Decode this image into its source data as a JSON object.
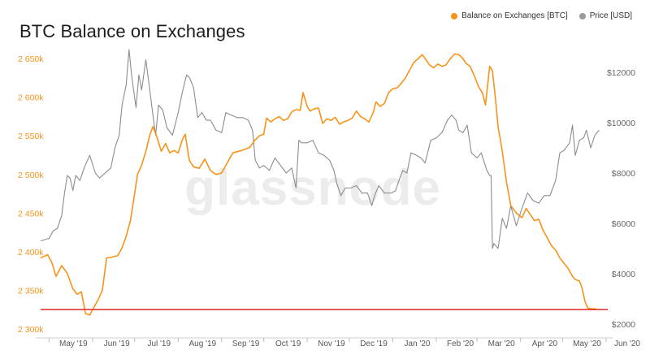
{
  "chart_data": {
    "type": "line",
    "title": "BTC Balance on Exchanges",
    "watermark": "glassnode",
    "legend_position": "top-right",
    "grid": false,
    "x_ticks": [
      "May '19",
      "Jun '19",
      "Jul '19",
      "Aug '19",
      "Sep '19",
      "Oct '19",
      "Nov '19",
      "Dec '19",
      "Jan '20",
      "Feb '20",
      "Mar '20",
      "Apr '20",
      "May '20",
      "Jun '20"
    ],
    "x_range": [
      "2019-04-25",
      "2020-06-01"
    ],
    "y_left": {
      "ticks": [
        2300000,
        2350000,
        2400000,
        2450000,
        2500000,
        2550000,
        2600000,
        2650000
      ],
      "tick_labels": [
        "2 300k",
        "2 350k",
        "2 400k",
        "2 450k",
        "2 500k",
        "2 550k",
        "2 600k",
        "2 650k"
      ],
      "range": [
        2300000,
        2668000
      ],
      "color": "#f7931a"
    },
    "y_right": {
      "ticks": [
        2000,
        4000,
        6000,
        8000,
        10000,
        12000
      ],
      "tick_labels": [
        "$2000",
        "$4000",
        "$6000",
        "$8000",
        "$10000",
        "$12000"
      ],
      "range": [
        1800,
        13100
      ],
      "color": "#9a9a9a"
    },
    "reference_line": {
      "axis": "left",
      "value": 2325000,
      "color": "#e53935"
    },
    "series": [
      {
        "name": "Balance on Exchanges [BTC]",
        "axis": "left",
        "color": "#f7931a",
        "points": [
          [
            "2019-04-25",
            2392000
          ],
          [
            "2019-04-30",
            2396000
          ],
          [
            "2019-05-03",
            2386000
          ],
          [
            "2019-05-06",
            2368000
          ],
          [
            "2019-05-10",
            2382000
          ],
          [
            "2019-05-14",
            2372000
          ],
          [
            "2019-05-18",
            2352000
          ],
          [
            "2019-05-21",
            2345000
          ],
          [
            "2019-05-24",
            2348000
          ],
          [
            "2019-05-27",
            2320000
          ],
          [
            "2019-05-30",
            2318000
          ],
          [
            "2019-06-02",
            2328000
          ],
          [
            "2019-06-05",
            2338000
          ],
          [
            "2019-06-08",
            2350000
          ],
          [
            "2019-06-11",
            2392000
          ],
          [
            "2019-06-15",
            2393000
          ],
          [
            "2019-06-19",
            2395000
          ],
          [
            "2019-06-22",
            2405000
          ],
          [
            "2019-06-25",
            2420000
          ],
          [
            "2019-06-28",
            2440000
          ],
          [
            "2019-07-01",
            2475000
          ],
          [
            "2019-07-03",
            2500000
          ],
          [
            "2019-07-06",
            2512000
          ],
          [
            "2019-07-09",
            2530000
          ],
          [
            "2019-07-12",
            2552000
          ],
          [
            "2019-07-14",
            2562000
          ],
          [
            "2019-07-17",
            2548000
          ],
          [
            "2019-07-20",
            2530000
          ],
          [
            "2019-07-23",
            2540000
          ],
          [
            "2019-07-26",
            2528000
          ],
          [
            "2019-07-29",
            2531000
          ],
          [
            "2019-08-01",
            2528000
          ],
          [
            "2019-08-04",
            2545000
          ],
          [
            "2019-08-06",
            2552000
          ],
          [
            "2019-08-09",
            2518000
          ],
          [
            "2019-08-12",
            2510000
          ],
          [
            "2019-08-16",
            2508000
          ],
          [
            "2019-08-20",
            2520000
          ],
          [
            "2019-08-24",
            2505000
          ],
          [
            "2019-08-28",
            2500000
          ],
          [
            "2019-09-01",
            2502000
          ],
          [
            "2019-09-05",
            2515000
          ],
          [
            "2019-09-09",
            2528000
          ],
          [
            "2019-09-13",
            2530000
          ],
          [
            "2019-09-17",
            2532000
          ],
          [
            "2019-09-21",
            2535000
          ],
          [
            "2019-09-25",
            2545000
          ],
          [
            "2019-09-28",
            2550000
          ],
          [
            "2019-10-01",
            2552000
          ],
          [
            "2019-10-03",
            2573000
          ],
          [
            "2019-10-06",
            2568000
          ],
          [
            "2019-10-09",
            2572000
          ],
          [
            "2019-10-12",
            2575000
          ],
          [
            "2019-10-15",
            2570000
          ],
          [
            "2019-10-18",
            2572000
          ],
          [
            "2019-10-21",
            2581000
          ],
          [
            "2019-10-24",
            2584000
          ],
          [
            "2019-10-27",
            2583000
          ],
          [
            "2019-10-29",
            2606000
          ],
          [
            "2019-11-01",
            2588000
          ],
          [
            "2019-11-03",
            2582000
          ],
          [
            "2019-11-06",
            2585000
          ],
          [
            "2019-11-09",
            2586000
          ],
          [
            "2019-11-12",
            2566000
          ],
          [
            "2019-11-15",
            2572000
          ],
          [
            "2019-11-18",
            2570000
          ],
          [
            "2019-11-21",
            2574000
          ],
          [
            "2019-11-24",
            2565000
          ],
          [
            "2019-11-27",
            2568000
          ],
          [
            "2019-11-30",
            2570000
          ],
          [
            "2019-12-03",
            2573000
          ],
          [
            "2019-12-06",
            2582000
          ],
          [
            "2019-12-09",
            2575000
          ],
          [
            "2019-12-12",
            2572000
          ],
          [
            "2019-12-15",
            2568000
          ],
          [
            "2019-12-18",
            2580000
          ],
          [
            "2019-12-20",
            2594000
          ],
          [
            "2019-12-23",
            2588000
          ],
          [
            "2019-12-26",
            2592000
          ],
          [
            "2019-12-29",
            2606000
          ],
          [
            "2020-01-01",
            2611000
          ],
          [
            "2020-01-04",
            2612000
          ],
          [
            "2020-01-07",
            2618000
          ],
          [
            "2020-01-10",
            2625000
          ],
          [
            "2020-01-13",
            2635000
          ],
          [
            "2020-01-16",
            2645000
          ],
          [
            "2020-01-19",
            2650000
          ],
          [
            "2020-01-22",
            2655000
          ],
          [
            "2020-01-24",
            2650000
          ],
          [
            "2020-01-27",
            2642000
          ],
          [
            "2020-01-30",
            2638000
          ],
          [
            "2020-02-02",
            2643000
          ],
          [
            "2020-02-05",
            2640000
          ],
          [
            "2020-02-08",
            2642000
          ],
          [
            "2020-02-11",
            2650000
          ],
          [
            "2020-02-14",
            2656000
          ],
          [
            "2020-02-17",
            2655000
          ],
          [
            "2020-02-20",
            2650000
          ],
          [
            "2020-02-22",
            2644000
          ],
          [
            "2020-02-25",
            2640000
          ],
          [
            "2020-02-28",
            2628000
          ],
          [
            "2020-03-02",
            2614000
          ],
          [
            "2020-03-05",
            2605000
          ],
          [
            "2020-03-07",
            2590000
          ],
          [
            "2020-03-10",
            2640000
          ],
          [
            "2020-03-12",
            2634000
          ],
          [
            "2020-03-14",
            2600000
          ],
          [
            "2020-03-16",
            2562000
          ],
          [
            "2020-03-19",
            2530000
          ],
          [
            "2020-03-22",
            2490000
          ],
          [
            "2020-03-25",
            2460000
          ],
          [
            "2020-03-29",
            2450000
          ],
          [
            "2020-04-02",
            2444000
          ],
          [
            "2020-04-05",
            2456000
          ],
          [
            "2020-04-08",
            2448000
          ],
          [
            "2020-04-11",
            2440000
          ],
          [
            "2020-04-14",
            2442000
          ],
          [
            "2020-04-17",
            2428000
          ],
          [
            "2020-04-20",
            2418000
          ],
          [
            "2020-04-23",
            2408000
          ],
          [
            "2020-04-26",
            2402000
          ],
          [
            "2020-04-29",
            2392000
          ],
          [
            "2020-05-02",
            2385000
          ],
          [
            "2020-05-05",
            2378000
          ],
          [
            "2020-05-08",
            2368000
          ],
          [
            "2020-05-10",
            2364000
          ],
          [
            "2020-05-13",
            2362000
          ],
          [
            "2020-05-15",
            2352000
          ],
          [
            "2020-05-17",
            2335000
          ],
          [
            "2020-05-19",
            2327000
          ],
          [
            "2020-05-22",
            2326000
          ],
          [
            "2020-05-25",
            2326000
          ]
        ]
      },
      {
        "name": "Price [USD]",
        "axis": "right",
        "color": "#8c8c8c",
        "points": [
          [
            "2019-04-25",
            5300
          ],
          [
            "2019-05-01",
            5400
          ],
          [
            "2019-05-04",
            5700
          ],
          [
            "2019-05-07",
            5800
          ],
          [
            "2019-05-10",
            6300
          ],
          [
            "2019-05-12",
            7200
          ],
          [
            "2019-05-14",
            7900
          ],
          [
            "2019-05-16",
            7800
          ],
          [
            "2019-05-18",
            7300
          ],
          [
            "2019-05-20",
            7900
          ],
          [
            "2019-05-23",
            7700
          ],
          [
            "2019-05-26",
            8200
          ],
          [
            "2019-05-30",
            8700
          ],
          [
            "2019-06-03",
            8000
          ],
          [
            "2019-06-06",
            7800
          ],
          [
            "2019-06-10",
            8000
          ],
          [
            "2019-06-14",
            8200
          ],
          [
            "2019-06-17",
            9000
          ],
          [
            "2019-06-20",
            9500
          ],
          [
            "2019-06-22",
            10700
          ],
          [
            "2019-06-25",
            11500
          ],
          [
            "2019-06-27",
            12900
          ],
          [
            "2019-06-29",
            11800
          ],
          [
            "2019-07-02",
            10600
          ],
          [
            "2019-07-04",
            11900
          ],
          [
            "2019-07-06",
            11300
          ],
          [
            "2019-07-09",
            12500
          ],
          [
            "2019-07-12",
            11200
          ],
          [
            "2019-07-14",
            10300
          ],
          [
            "2019-07-16",
            9500
          ],
          [
            "2019-07-18",
            10700
          ],
          [
            "2019-07-21",
            10500
          ],
          [
            "2019-07-24",
            9800
          ],
          [
            "2019-07-28",
            9500
          ],
          [
            "2019-08-01",
            10400
          ],
          [
            "2019-08-04",
            11200
          ],
          [
            "2019-08-07",
            11900
          ],
          [
            "2019-08-09",
            11800
          ],
          [
            "2019-08-12",
            11400
          ],
          [
            "2019-08-15",
            10200
          ],
          [
            "2019-08-18",
            10400
          ],
          [
            "2019-08-21",
            10100
          ],
          [
            "2019-08-24",
            10100
          ],
          [
            "2019-08-28",
            9700
          ],
          [
            "2019-09-01",
            9600
          ],
          [
            "2019-09-04",
            10400
          ],
          [
            "2019-09-08",
            10300
          ],
          [
            "2019-09-12",
            10200
          ],
          [
            "2019-09-16",
            10200
          ],
          [
            "2019-09-20",
            10100
          ],
          [
            "2019-09-23",
            9700
          ],
          [
            "2019-09-25",
            8500
          ],
          [
            "2019-09-28",
            8200
          ],
          [
            "2019-10-01",
            8300
          ],
          [
            "2019-10-05",
            8100
          ],
          [
            "2019-10-09",
            8600
          ],
          [
            "2019-10-13",
            8300
          ],
          [
            "2019-10-17",
            8000
          ],
          [
            "2019-10-21",
            8200
          ],
          [
            "2019-10-24",
            7400
          ],
          [
            "2019-10-26",
            9300
          ],
          [
            "2019-10-28",
            9200
          ],
          [
            "2019-11-01",
            9200
          ],
          [
            "2019-11-05",
            9300
          ],
          [
            "2019-11-09",
            8800
          ],
          [
            "2019-11-13",
            8700
          ],
          [
            "2019-11-17",
            8500
          ],
          [
            "2019-11-20",
            8100
          ],
          [
            "2019-11-22",
            7600
          ],
          [
            "2019-11-25",
            7100
          ],
          [
            "2019-11-28",
            7400
          ],
          [
            "2019-12-02",
            7400
          ],
          [
            "2019-12-06",
            7500
          ],
          [
            "2019-12-10",
            7200
          ],
          [
            "2019-12-14",
            7200
          ],
          [
            "2019-12-17",
            6700
          ],
          [
            "2019-12-19",
            7100
          ],
          [
            "2019-12-22",
            7500
          ],
          [
            "2019-12-26",
            7200
          ],
          [
            "2019-12-31",
            7200
          ],
          [
            "2020-01-03",
            7300
          ],
          [
            "2020-01-06",
            7800
          ],
          [
            "2020-01-08",
            8100
          ],
          [
            "2020-01-11",
            8000
          ],
          [
            "2020-01-14",
            8800
          ],
          [
            "2020-01-18",
            8700
          ],
          [
            "2020-01-21",
            8600
          ],
          [
            "2020-01-24",
            8400
          ],
          [
            "2020-01-28",
            9300
          ],
          [
            "2020-02-01",
            9400
          ],
          [
            "2020-02-05",
            9600
          ],
          [
            "2020-02-09",
            10100
          ],
          [
            "2020-02-12",
            10300
          ],
          [
            "2020-02-15",
            10100
          ],
          [
            "2020-02-17",
            9700
          ],
          [
            "2020-02-20",
            9600
          ],
          [
            "2020-02-23",
            9900
          ],
          [
            "2020-02-26",
            8800
          ],
          [
            "2020-03-01",
            8600
          ],
          [
            "2020-03-04",
            8800
          ],
          [
            "2020-03-08",
            8100
          ],
          [
            "2020-03-10",
            7900
          ],
          [
            "2020-03-11",
            7900
          ],
          [
            "2020-03-12",
            5000
          ],
          [
            "2020-03-13",
            5200
          ],
          [
            "2020-03-16",
            5000
          ],
          [
            "2020-03-19",
            6200
          ],
          [
            "2020-03-22",
            5800
          ],
          [
            "2020-03-25",
            6700
          ],
          [
            "2020-03-29",
            5900
          ],
          [
            "2020-04-02",
            6600
          ],
          [
            "2020-04-06",
            7200
          ],
          [
            "2020-04-10",
            6900
          ],
          [
            "2020-04-14",
            6800
          ],
          [
            "2020-04-18",
            7100
          ],
          [
            "2020-04-22",
            7100
          ],
          [
            "2020-04-26",
            7700
          ],
          [
            "2020-04-29",
            8800
          ],
          [
            "2020-05-02",
            8900
          ],
          [
            "2020-05-06",
            9200
          ],
          [
            "2020-05-08",
            9900
          ],
          [
            "2020-05-10",
            8700
          ],
          [
            "2020-05-13",
            9300
          ],
          [
            "2020-05-16",
            9400
          ],
          [
            "2020-05-18",
            9700
          ],
          [
            "2020-05-21",
            9000
          ],
          [
            "2020-05-24",
            9500
          ],
          [
            "2020-05-27",
            9700
          ]
        ]
      }
    ]
  }
}
